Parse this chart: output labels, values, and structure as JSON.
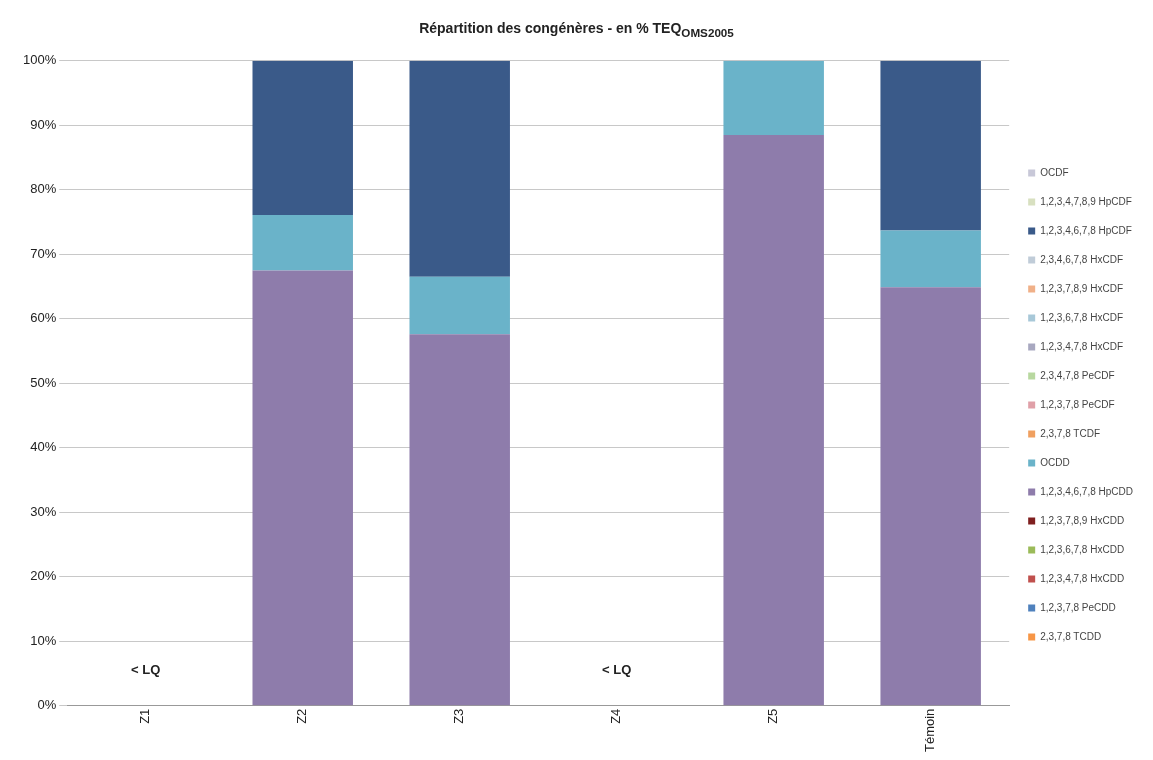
{
  "chart_data": {
    "type": "bar",
    "stacked": true,
    "title": "Répartition des congénères - en % TEQ$_{OMS2005}$",
    "categories": [
      "Z1",
      "Z2",
      "Z3",
      "Z4",
      "Z5",
      "Témoin"
    ],
    "ylim": [
      0,
      100
    ],
    "yticks": [
      {
        "value": 0,
        "label": "0%"
      },
      {
        "value": 10,
        "label": "10%"
      },
      {
        "value": 20,
        "label": "20%"
      },
      {
        "value": 30,
        "label": "30%"
      },
      {
        "value": 40,
        "label": "40%"
      },
      {
        "value": 50,
        "label": "50%"
      },
      {
        "value": 60,
        "label": "60%"
      },
      {
        "value": 70,
        "label": "70%"
      },
      {
        "value": 80,
        "label": "80%"
      },
      {
        "value": 90,
        "label": "90%"
      },
      {
        "value": 100,
        "label": "100%"
      }
    ],
    "grid": "y",
    "legend": "right",
    "annotations": [
      "< LQ",
      "< LQ"
    ],
    "series": [
      {
        "name": "2,3,7,8 TCDD",
        "color": "#f79646",
        "values": [
          null,
          0,
          0,
          null,
          0,
          0
        ]
      },
      {
        "name": "1,2,3,7,8 PeCDD",
        "color": "#4f81bd",
        "values": [
          null,
          0,
          0,
          null,
          0,
          0
        ]
      },
      {
        "name": "1,2,3,4,7,8 HxCDD",
        "color": "#c0504d",
        "values": [
          null,
          0,
          0,
          null,
          0,
          0
        ]
      },
      {
        "name": "1,2,3,6,7,8 HxCDD",
        "color": "#9bbb59",
        "values": [
          null,
          0,
          0,
          null,
          0,
          0
        ]
      },
      {
        "name": "1,2,3,7,8,9 HxCDD",
        "color": "#7f1f1f",
        "values": [
          null,
          0,
          0,
          null,
          0,
          0
        ]
      },
      {
        "name": "1,2,3,4,6,7,8 HpCDD",
        "color": "#8e7cab",
        "values": [
          null,
          67.5,
          57.6,
          null,
          88.5,
          64.9
        ]
      },
      {
        "name": "OCDD",
        "color": "#6ab3c9",
        "values": [
          null,
          8.6,
          8.9,
          null,
          11.5,
          8.8
        ]
      },
      {
        "name": "2,3,7,8 TCDF",
        "color": "#f0a060",
        "values": [
          null,
          0,
          0,
          null,
          0,
          0
        ]
      },
      {
        "name": "1,2,3,7,8 PeCDF",
        "color": "#e0a0a8",
        "values": [
          null,
          0,
          0,
          null,
          0,
          0
        ]
      },
      {
        "name": "2,3,4,7,8 PeCDF",
        "color": "#b8d8a0",
        "values": [
          null,
          0,
          0,
          null,
          0,
          0
        ]
      },
      {
        "name": "1,2,3,4,7,8 HxCDF",
        "color": "#a8a8c0",
        "values": [
          null,
          0,
          0,
          null,
          0,
          0
        ]
      },
      {
        "name": "1,2,3,6,7,8 HxCDF",
        "color": "#a8c8d8",
        "values": [
          null,
          0,
          0,
          null,
          0,
          0
        ]
      },
      {
        "name": "1,2,3,7,8,9 HxCDF",
        "color": "#f0b088",
        "values": [
          null,
          0,
          0,
          null,
          0,
          0
        ]
      },
      {
        "name": "2,3,4,6,7,8 HxCDF",
        "color": "#c0ccd8",
        "values": [
          null,
          0,
          0,
          null,
          0,
          0
        ]
      },
      {
        "name": "1,2,3,4,6,7,8 HpCDF",
        "color": "#3a5a89",
        "values": [
          null,
          23.9,
          33.5,
          null,
          0,
          26.3
        ]
      },
      {
        "name": "1,2,3,4,7,8,9 HpCDF",
        "color": "#d8e0c0",
        "values": [
          null,
          0,
          0,
          null,
          0,
          0
        ]
      },
      {
        "name": "OCDF",
        "color": "#c8c8d8",
        "values": [
          null,
          0,
          0,
          null,
          0,
          0
        ]
      }
    ]
  }
}
